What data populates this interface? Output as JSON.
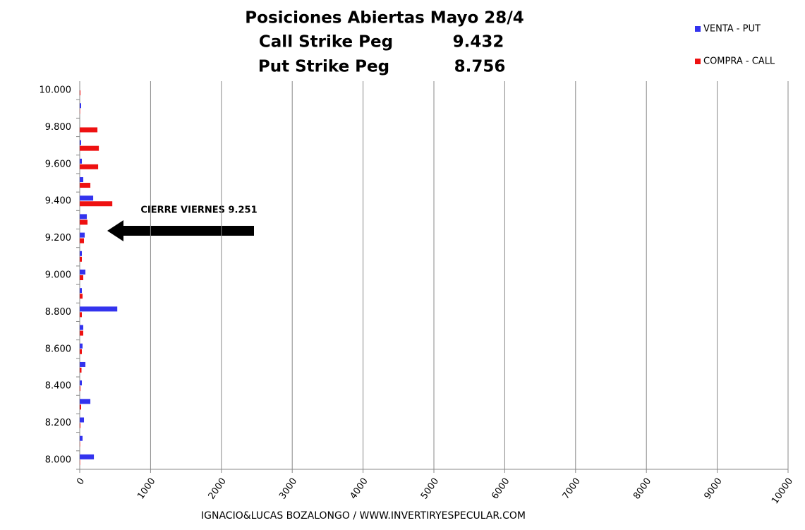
{
  "chart_data": {
    "type": "hbar",
    "title": "Posiciones Abiertas Mayo  28/4",
    "subtitle_lines": [
      {
        "label": "Call Strike Peg",
        "value": "9.432"
      },
      {
        "label": "Put Strike Peg",
        "value": "8.756"
      }
    ],
    "annotation": "CIERRE VIERNES 9.251",
    "footer": "IGNACIO&LUCAS BOZALONGO / WWW.INVERTIRYESPECULAR.COM",
    "categories": [
      "8.000",
      null,
      "8.200",
      null,
      "8.400",
      null,
      "8.600",
      null,
      "8.800",
      null,
      "9.000",
      null,
      "9.200",
      null,
      "9.400",
      null,
      "9.600",
      null,
      "9.800",
      null,
      "10.000"
    ],
    "series": [
      {
        "name": "VENTA - PUT",
        "color": "#3333ee",
        "values": [
          200,
          40,
          60,
          150,
          30,
          80,
          40,
          50,
          530,
          30,
          80,
          30,
          70,
          100,
          190,
          50,
          30,
          20,
          0,
          20,
          0
        ]
      },
      {
        "name": "COMPRA - CALL",
        "color": "#ee1111",
        "values": [
          5,
          5,
          10,
          20,
          10,
          25,
          30,
          50,
          30,
          40,
          50,
          30,
          60,
          110,
          460,
          150,
          260,
          270,
          250,
          5,
          10
        ]
      }
    ],
    "xlim": [
      0,
      10000
    ],
    "xticks": [
      0,
      1000,
      2000,
      3000,
      4000,
      5000,
      6000,
      7000,
      8000,
      9000,
      10000
    ],
    "grid": true,
    "legend": "top-right"
  }
}
